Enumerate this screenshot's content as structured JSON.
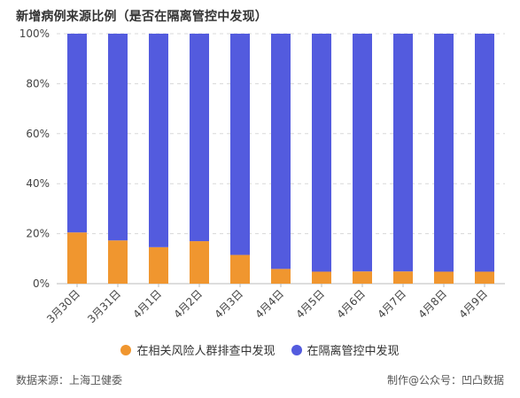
{
  "title": "新增病例来源比例（是否在隔离管控中发现）",
  "colors": {
    "screening": "#F0962F",
    "quarantine": "#535BDE",
    "grid": "#d8d8d8"
  },
  "chart_data": {
    "type": "bar",
    "stacked": true,
    "categories": [
      "3月30日",
      "3月31日",
      "4月1日",
      "4月2日",
      "4月3日",
      "4月4日",
      "4月5日",
      "4月6日",
      "4月7日",
      "4月8日",
      "4月9日"
    ],
    "series": [
      {
        "name": "在相关风险人群排查中发现",
        "color": "#F0962F",
        "values": [
          20.5,
          17.3,
          14.6,
          17.0,
          11.5,
          5.9,
          4.8,
          4.9,
          4.9,
          4.8,
          4.8
        ]
      },
      {
        "name": "在隔离管控中发现",
        "color": "#535BDE",
        "values": [
          79.5,
          82.7,
          85.4,
          83.0,
          88.5,
          94.1,
          95.2,
          95.1,
          95.1,
          95.2,
          95.2
        ]
      }
    ],
    "yticks": [
      "0%",
      "20%",
      "40%",
      "60%",
      "80%",
      "100%"
    ],
    "ylim": [
      0,
      100
    ],
    "grid": true,
    "legend_position": "bottom"
  },
  "legend": [
    {
      "label": "在相关风险人群排查中发现",
      "color": "#F0962F"
    },
    {
      "label": "在隔离管控中发现",
      "color": "#535BDE"
    }
  ],
  "footer": {
    "source": "数据来源：上海卫健委",
    "credit": "制作@公众号：凹凸数据"
  }
}
